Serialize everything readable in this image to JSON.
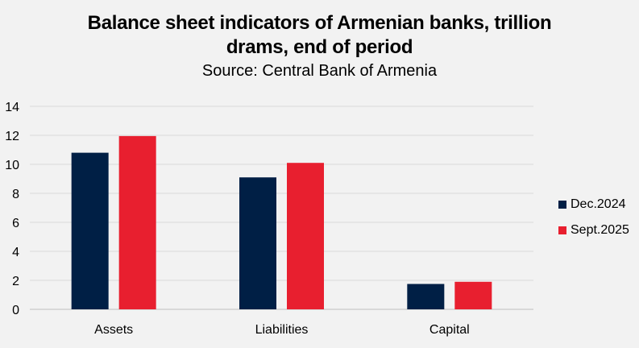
{
  "chart_data": {
    "type": "bar",
    "title": "Balance sheet indicators of Armenian banks, trillion drams, end of period",
    "subtitle": "Source: Central Bank of Armenia",
    "categories": [
      "Assets",
      "Liabilities",
      "Capital"
    ],
    "series": [
      {
        "name": "Dec.2024",
        "color": "#001f45",
        "values": [
          10.8,
          9.1,
          1.75
        ]
      },
      {
        "name": "Sept.2025",
        "color": "#e81f2f",
        "values": [
          11.95,
          10.1,
          1.9
        ]
      }
    ],
    "ylim": [
      0,
      14
    ],
    "yticks": [
      0,
      2,
      4,
      6,
      8,
      10,
      12,
      14
    ],
    "grid": true,
    "legend_position": "right"
  }
}
